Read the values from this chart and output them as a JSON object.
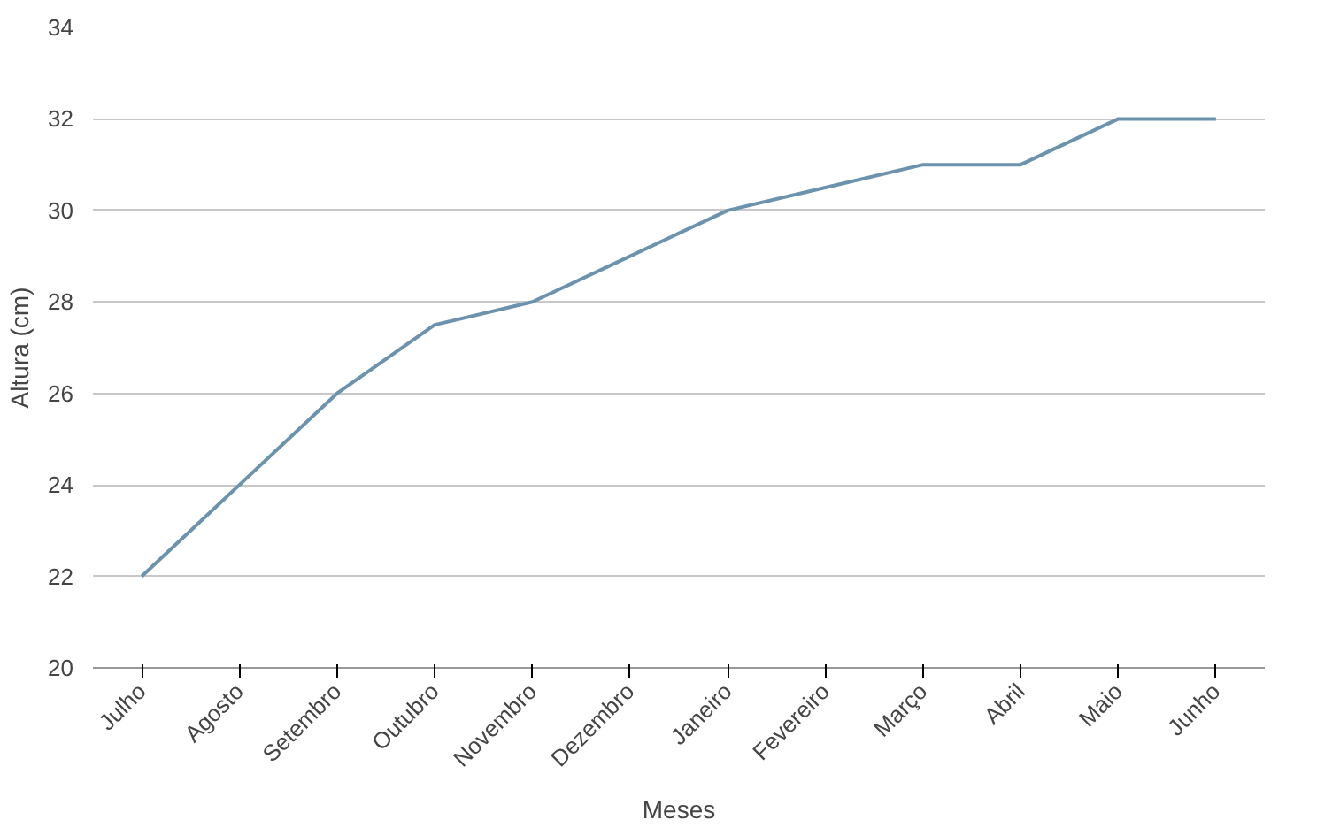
{
  "chart_data": {
    "type": "line",
    "xlabel": "Meses",
    "ylabel": "Altura (cm)",
    "categories": [
      "Julho",
      "Agosto",
      "Setembro",
      "Outubro",
      "Novembro",
      "Dezembro",
      "Janeiro",
      "Fevereiro",
      "Março",
      "Abril",
      "Maio",
      "Junho"
    ],
    "series": [
      {
        "color": "#6b93ad",
        "values": [
          22,
          24,
          26,
          27.5,
          28,
          29,
          30,
          30.5,
          31,
          31,
          32,
          32
        ]
      }
    ],
    "ylim": [
      20,
      34
    ],
    "yticks": [
      20,
      22,
      24,
      26,
      28,
      30,
      32,
      34
    ],
    "grid": "y",
    "marker": "none",
    "line_style": "solid"
  }
}
